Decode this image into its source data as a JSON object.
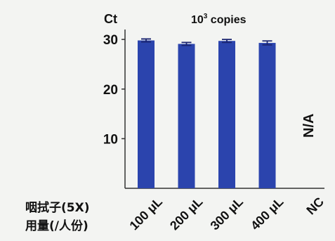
{
  "chart_data": {
    "type": "bar",
    "title": "10³ copies",
    "ylabel": "Ct",
    "ylim": [
      0,
      32
    ],
    "yticks": [
      10,
      20,
      30
    ],
    "categories": [
      "100 μL",
      "200 μL",
      "300 μL",
      "400 μL",
      "NC"
    ],
    "values": [
      29.8,
      29.1,
      29.7,
      29.3,
      null
    ],
    "errors": [
      0.3,
      0.3,
      0.3,
      0.4,
      null
    ],
    "na_label": "N/A",
    "bar_color": "#2b44ad",
    "row_labels": [
      "咽拭子(5X)",
      "用量(/人份)"
    ],
    "grid": false
  }
}
